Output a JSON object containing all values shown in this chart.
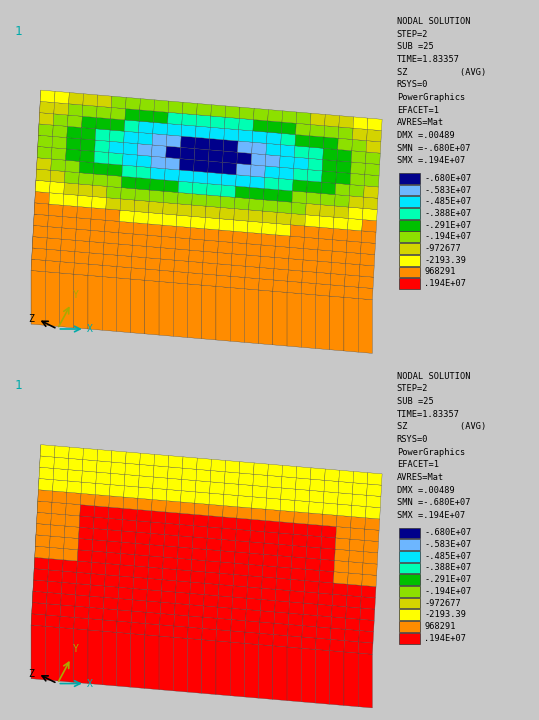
{
  "fig_width": 5.39,
  "fig_height": 7.2,
  "dpi": 100,
  "bg_color": "#c8c8c8",
  "panel_bg": "#ffffff",
  "info_text": [
    "NODAL SOLUTION",
    "STEP=2",
    "SUB =25",
    "TIME=1.83357",
    "SZ          (AVG)",
    "RSYS=0",
    "PowerGraphics",
    "EFACET=1",
    "AVRES=Mat",
    "DMX =.00489",
    "SMN =-.680E+07",
    "SMX =.194E+07"
  ],
  "legend_colors": [
    "#00008b",
    "#6db6ff",
    "#00e5ff",
    "#00ffb3",
    "#00c000",
    "#8de000",
    "#d4d400",
    "#ffff00",
    "#ff8c00",
    "#ff0000"
  ],
  "legend_labels": [
    "-.680E+07",
    "-.583E+07",
    "-.485E+07",
    "-.388E+07",
    "-.291E+07",
    "-.194E+07",
    "-972677",
    "-2193.39",
    "968291",
    ".194E+07"
  ],
  "nx": 24,
  "ny": 16,
  "slab_thickness": 0.06,
  "panel1_num": "1",
  "panel2_num": "1"
}
